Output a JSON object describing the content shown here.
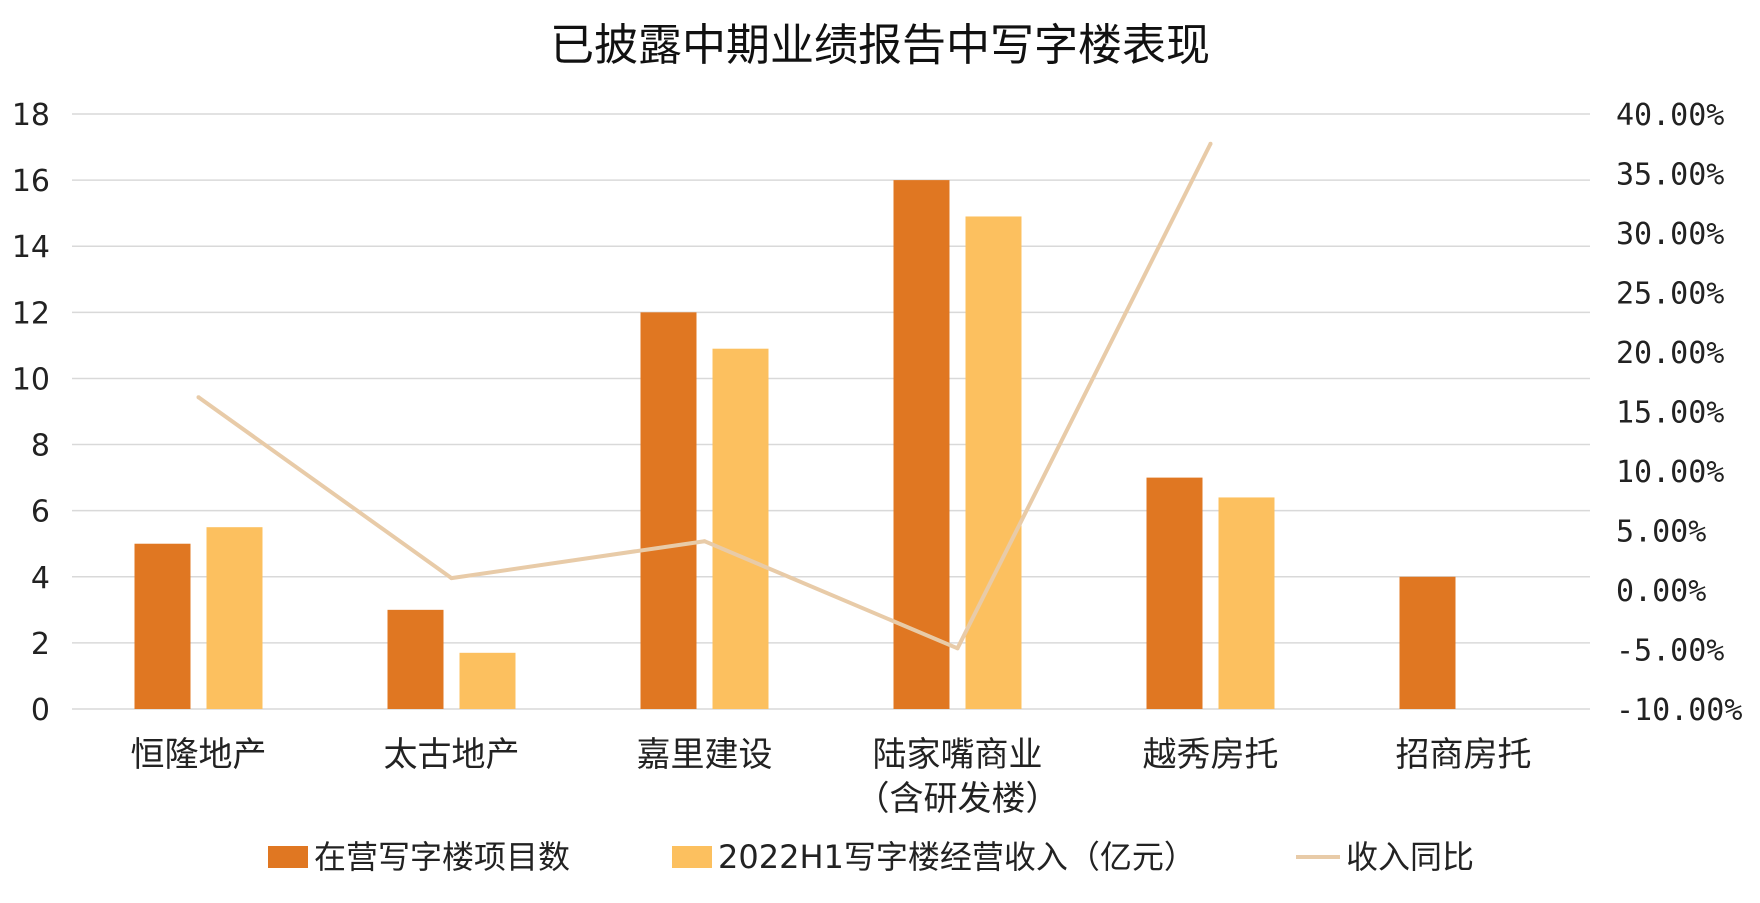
{
  "chart_data": {
    "type": "bar",
    "title": "已披露中期业绩报告中写字楼表现",
    "categories": [
      [
        "恒隆地产"
      ],
      [
        "太古地产"
      ],
      [
        "嘉里建设"
      ],
      [
        "陆家嘴商业",
        "（含研发楼）"
      ],
      [
        "越秀房托"
      ],
      [
        "招商房托"
      ]
    ],
    "series": [
      {
        "name": "在营写字楼项目数",
        "type": "bar",
        "axis": "left",
        "color": "#E07722",
        "values": [
          5,
          3,
          12,
          16,
          7,
          4
        ]
      },
      {
        "name": "2022H1写字楼经营收入（亿元）",
        "type": "bar",
        "axis": "left",
        "color": "#FCC05F",
        "values": [
          5.5,
          1.7,
          10.9,
          14.9,
          6.4,
          null
        ]
      },
      {
        "name": "收入同比",
        "type": "line",
        "axis": "right",
        "color": "#E8CBA8",
        "values": [
          16.2,
          1.0,
          4.1,
          -4.9,
          37.5,
          null
        ]
      }
    ],
    "y_left": {
      "min": 0,
      "max": 18,
      "step": 2,
      "ticks": [
        "0",
        "2",
        "4",
        "6",
        "8",
        "10",
        "12",
        "14",
        "16",
        "18"
      ]
    },
    "y_right": {
      "min": -10,
      "max": 40,
      "step": 5,
      "ticks": [
        "-10.00%",
        "-5.00%",
        "0.00%",
        "5.00%",
        "10.00%",
        "15.00%",
        "20.00%",
        "25.00%",
        "30.00%",
        "35.00%",
        "40.00%"
      ]
    },
    "grid": true,
    "legend_position": "bottom"
  }
}
